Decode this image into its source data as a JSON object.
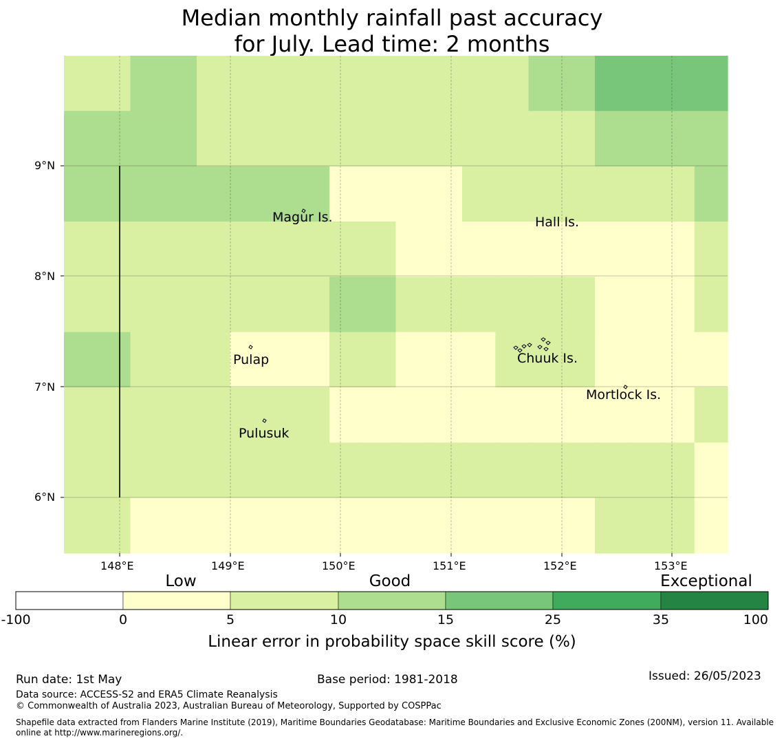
{
  "header": {
    "title_line1": "Median monthly rainfall past accuracy",
    "title_line2": "for July. Lead time: 2 months"
  },
  "map": {
    "lon_range": [
      147.5,
      153.5
    ],
    "lat_range": [
      5.5,
      10.0
    ],
    "x_ticks": [
      "148°E",
      "149°E",
      "150°E",
      "151°E",
      "152°E",
      "153°E"
    ],
    "y_ticks": [
      "9°N",
      "8°N",
      "7°N",
      "6°N"
    ],
    "places": [
      "Magur Is.",
      "Hall Is.",
      "Pulap",
      "Chuuk Is.",
      "Mortlock Is.",
      "Pulusuk"
    ],
    "category_colors": {
      "lowest": "#ffffff",
      "low": "#ffffcc",
      "good1": "#d9f0a3",
      "good2": "#addd8e",
      "good3": "#78c679",
      "good4": "#41ab5d",
      "good5": "#238443"
    },
    "grid_rows": [
      [
        "good1",
        "good1",
        "good2",
        "good2",
        "good1",
        "good1",
        "good1",
        "good1",
        "good1",
        "good1",
        "good1",
        "good1",
        "good1",
        "good1",
        "good2",
        "good2",
        "good3",
        "good3",
        "good3",
        "good3"
      ],
      [
        "good2",
        "good2",
        "good2",
        "good2",
        "good1",
        "good1",
        "good1",
        "good1",
        "good1",
        "good1",
        "good1",
        "good1",
        "good1",
        "good1",
        "good1",
        "good1",
        "good2",
        "good2",
        "good2",
        "good2"
      ],
      [
        "good2",
        "good2",
        "good2",
        "good2",
        "good2",
        "good2",
        "good2",
        "good2",
        "low",
        "low",
        "low",
        "low",
        "good1",
        "good1",
        "good1",
        "good1",
        "good1",
        "good1",
        "good1",
        "good2"
      ],
      [
        "good1",
        "good1",
        "good1",
        "good1",
        "good1",
        "good1",
        "good1",
        "good1",
        "good1",
        "good1",
        "low",
        "low",
        "low",
        "low",
        "low",
        "low",
        "low",
        "low",
        "low",
        "good1"
      ],
      [
        "good1",
        "good1",
        "good1",
        "good1",
        "good1",
        "good1",
        "good1",
        "good1",
        "good2",
        "good2",
        "good1",
        "good1",
        "good1",
        "good1",
        "good1",
        "good1",
        "low",
        "low",
        "low",
        "good1"
      ],
      [
        "good2",
        "good2",
        "good1",
        "good1",
        "good1",
        "low",
        "low",
        "low",
        "good1",
        "good1",
        "low",
        "low",
        "low",
        "good1",
        "good1",
        "good1",
        "low",
        "low",
        "low",
        "low"
      ],
      [
        "good1",
        "good1",
        "good1",
        "good1",
        "good1",
        "good1",
        "good1",
        "good1",
        "low",
        "low",
        "low",
        "low",
        "low",
        "low",
        "low",
        "low",
        "low",
        "low",
        "low",
        "good1"
      ],
      [
        "good1",
        "good1",
        "good1",
        "good1",
        "good1",
        "good1",
        "good1",
        "good1",
        "good1",
        "good1",
        "good1",
        "good1",
        "good1",
        "good1",
        "good1",
        "good1",
        "good1",
        "good1",
        "good1",
        "low"
      ],
      [
        "good1",
        "good1",
        "low",
        "low",
        "low",
        "low",
        "low",
        "low",
        "low",
        "low",
        "low",
        "low",
        "low",
        "low",
        "low",
        "low",
        "good1",
        "good1",
        "good1",
        "low"
      ]
    ]
  },
  "colorbar": {
    "categories": [
      "Low",
      "Good",
      "Exceptional"
    ],
    "ticks": [
      "-100",
      "0",
      "5",
      "10",
      "15",
      "25",
      "35",
      "100"
    ],
    "colors": [
      "#ffffff",
      "#ffffcc",
      "#d9f0a3",
      "#addd8e",
      "#78c679",
      "#41ab5d",
      "#238443"
    ],
    "label": "Linear error in probability space skill score (%)"
  },
  "footer": {
    "run_date": "Run date: 1st May",
    "base_period": "Base period: 1981-2018",
    "issued": "Issued: 26/05/2023",
    "data_source": "Data source: ACCESS-S2 and ERA5 Climate Reanalysis",
    "copyright": "© Commonwealth of Australia 2023, Australian Bureau of Meteorology, Supported by COSPPac",
    "shapefile_line1": "Shapefile data extracted from Flanders Marine Institute (2019), Maritime Boundaries Geodatabase: Maritime Boundaries and Exclusive Economic Zones (200NM), version 11. Available",
    "shapefile_line2": "online at http://www.marineregions.org/."
  }
}
